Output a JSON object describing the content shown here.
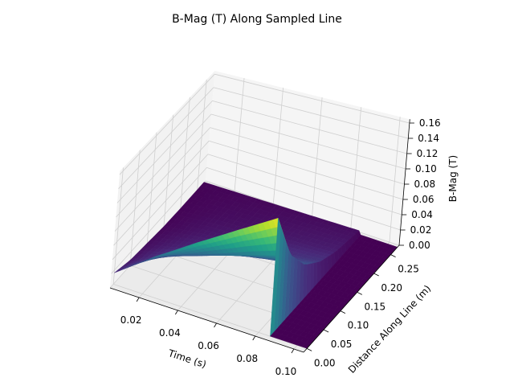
{
  "chart_data": {
    "type": "surface",
    "title": "B-Mag (T) Along Sampled Line",
    "xlabel": "Time (s)",
    "ylabel": "Distance Along Line (m)",
    "zlabel": "B-Mag (T)",
    "xlim": [
      0.005,
      0.105
    ],
    "ylim": [
      -0.01,
      0.275
    ],
    "zlim": [
      0,
      0.165
    ],
    "x_ticks": [
      "0.02",
      "0.04",
      "0.06",
      "0.08",
      "0.10"
    ],
    "y_ticks": [
      "0.00",
      "0.05",
      "0.10",
      "0.15",
      "0.20",
      "0.25"
    ],
    "z_ticks": [
      "0.00",
      "0.02",
      "0.04",
      "0.06",
      "0.08",
      "0.10",
      "0.12",
      "0.14",
      "0.16"
    ],
    "grid": true,
    "colormap": "viridis",
    "surface": {
      "time": [
        0.005,
        0.025,
        0.045,
        0.065,
        0.085,
        0.086,
        0.105
      ],
      "distance": [
        0,
        0.05,
        0.1,
        0.15,
        0.2,
        0.27
      ],
      "bmag": [
        [
          0.016,
          0.008,
          0.005,
          0.002,
          0.001,
          0.001
        ],
        [
          0.056,
          0.03,
          0.016,
          0.009,
          0.005,
          0.002
        ],
        [
          0.09,
          0.048,
          0.026,
          0.014,
          0.007,
          0.003
        ],
        [
          0.121,
          0.065,
          0.035,
          0.019,
          0.01,
          0.004
        ],
        [
          0.15,
          0.08,
          0.043,
          0.023,
          0.012,
          0.005
        ],
        [
          0,
          0,
          0,
          0,
          0,
          0
        ],
        [
          0,
          0,
          0,
          0,
          0,
          0
        ]
      ]
    }
  }
}
